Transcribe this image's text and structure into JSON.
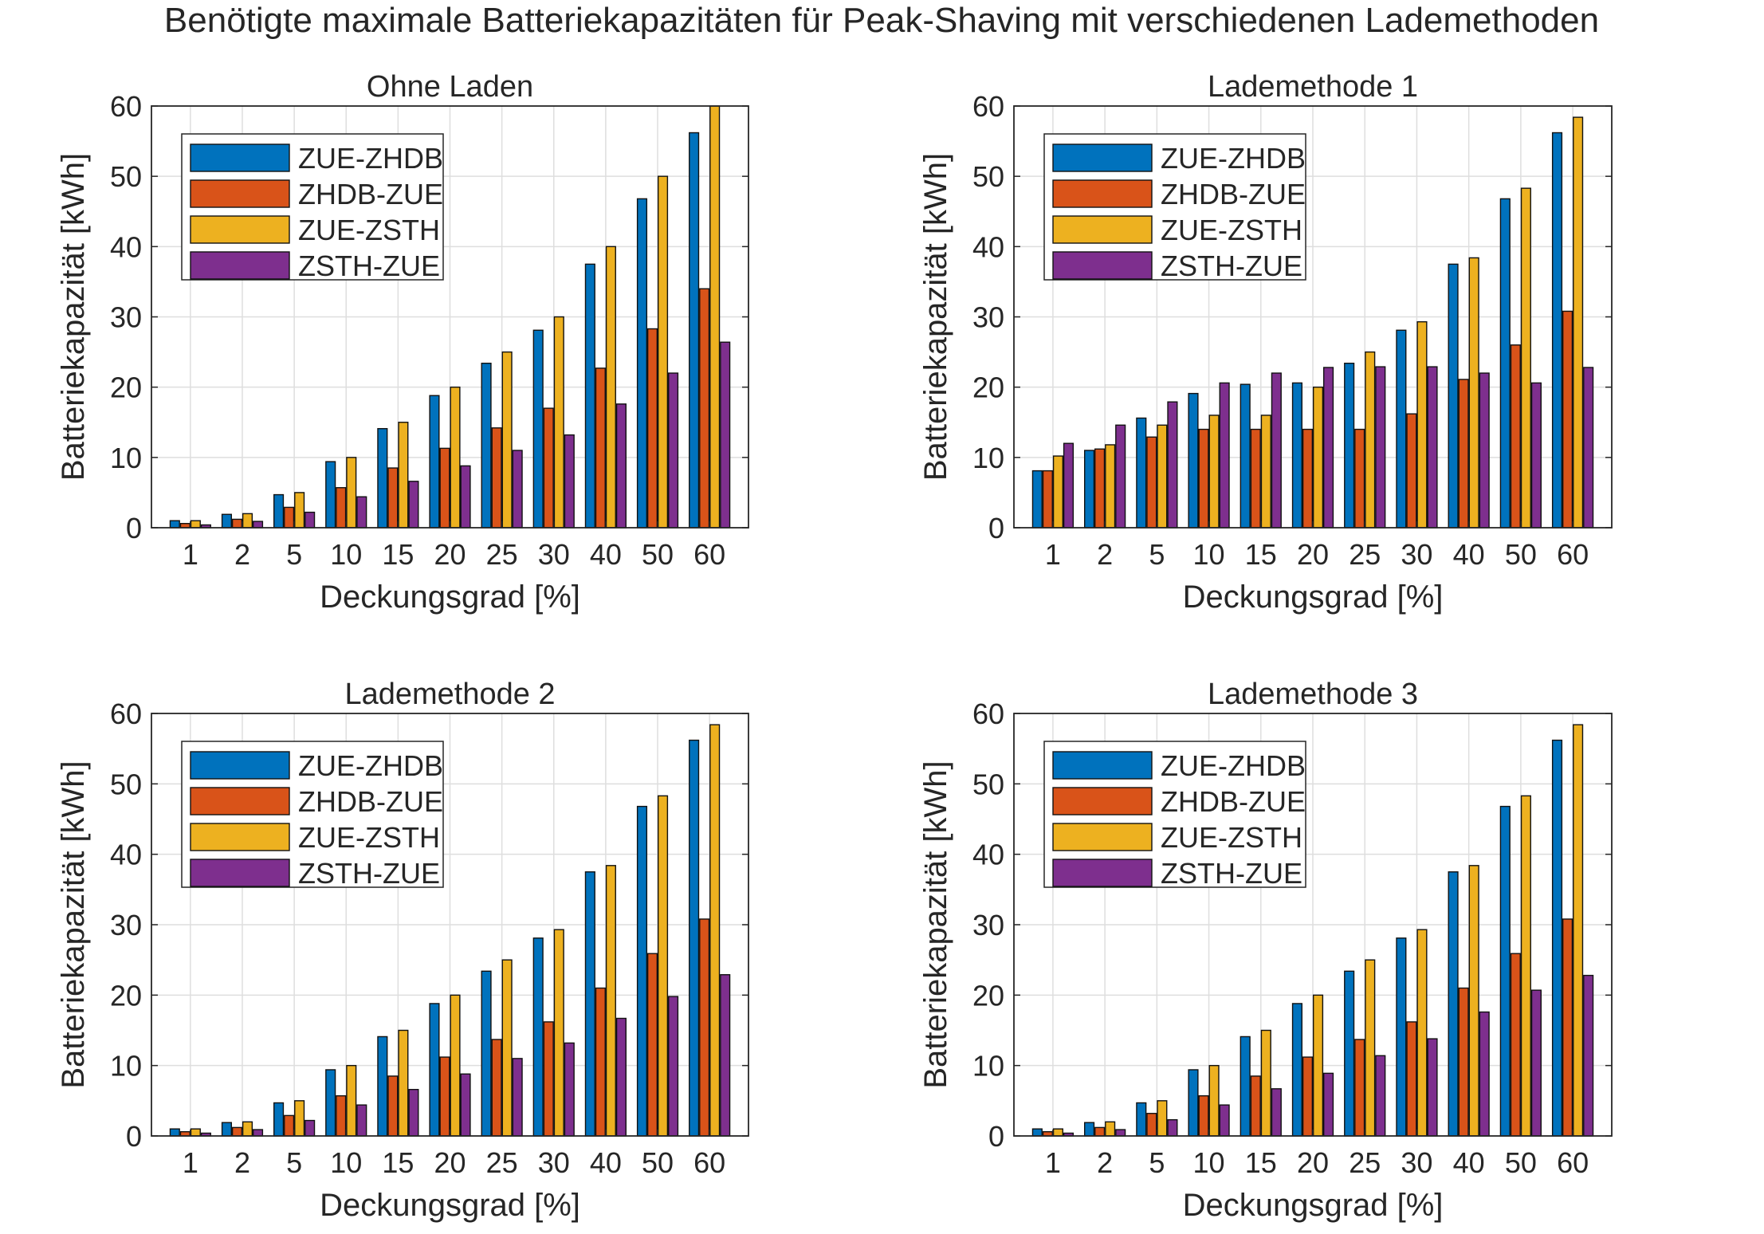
{
  "figure_title": "Benötigte maximale Batteriekapazitäten für Peak-Shaving mit verschiedenen Lademethoden",
  "colors": {
    "ZUE-ZHDB": "#0072BD",
    "ZHDB-ZUE": "#D95319",
    "ZUE-ZSTH": "#EDB120",
    "ZSTH-ZUE": "#7E2F8E",
    "grid": "#dedede",
    "axis": "#262626"
  },
  "chart_data": [
    {
      "type": "bar",
      "title": "Ohne Laden",
      "xlabel": "Deckungsgrad [%]",
      "ylabel": "Batteriekapazität [kWh]",
      "ylim": [
        0,
        60
      ],
      "yticks": [
        "0",
        "10",
        "20",
        "30",
        "40",
        "50",
        "60"
      ],
      "categories": [
        "1",
        "2",
        "5",
        "10",
        "15",
        "20",
        "25",
        "30",
        "40",
        "50",
        "60"
      ],
      "grid": true,
      "legend_position": "top-left",
      "series": [
        {
          "name": "ZUE-ZHDB",
          "values": [
            1.0,
            1.9,
            4.7,
            9.4,
            14.1,
            18.8,
            23.4,
            28.1,
            37.5,
            46.8,
            56.2
          ]
        },
        {
          "name": "ZHDB-ZUE",
          "values": [
            0.6,
            1.2,
            2.9,
            5.7,
            8.5,
            11.3,
            14.2,
            17.0,
            22.7,
            28.3,
            34.0
          ]
        },
        {
          "name": "ZUE-ZSTH",
          "values": [
            1.0,
            2.0,
            5.0,
            10.0,
            15.0,
            20.0,
            25.0,
            30.0,
            40.0,
            50.0,
            60.0
          ]
        },
        {
          "name": "ZSTH-ZUE",
          "values": [
            0.4,
            0.9,
            2.2,
            4.4,
            6.6,
            8.8,
            11.0,
            13.2,
            17.6,
            22.0,
            26.4
          ]
        }
      ]
    },
    {
      "type": "bar",
      "title": "Lademethode 1",
      "xlabel": "Deckungsgrad [%]",
      "ylabel": "Batteriekapazität [kWh]",
      "ylim": [
        0,
        60
      ],
      "yticks": [
        "0",
        "10",
        "20",
        "30",
        "40",
        "50",
        "60"
      ],
      "categories": [
        "1",
        "2",
        "5",
        "10",
        "15",
        "20",
        "25",
        "30",
        "40",
        "50",
        "60"
      ],
      "grid": true,
      "legend_position": "top-left",
      "series": [
        {
          "name": "ZUE-ZHDB",
          "values": [
            8.1,
            11.0,
            15.6,
            19.1,
            20.4,
            20.6,
            23.4,
            28.1,
            37.5,
            46.8,
            56.2
          ]
        },
        {
          "name": "ZHDB-ZUE",
          "values": [
            8.1,
            11.2,
            12.9,
            14.0,
            14.0,
            14.0,
            14.0,
            16.2,
            21.1,
            26.0,
            30.8
          ]
        },
        {
          "name": "ZUE-ZSTH",
          "values": [
            10.2,
            11.8,
            14.6,
            16.0,
            16.0,
            20.0,
            25.0,
            29.3,
            38.4,
            48.3,
            58.4
          ]
        },
        {
          "name": "ZSTH-ZUE",
          "values": [
            12.0,
            14.6,
            17.9,
            20.6,
            22.0,
            22.8,
            22.9,
            22.9,
            22.0,
            20.6,
            22.8
          ]
        }
      ]
    },
    {
      "type": "bar",
      "title": "Lademethode 2",
      "xlabel": "Deckungsgrad [%]",
      "ylabel": "Batteriekapazität [kWh]",
      "ylim": [
        0,
        60
      ],
      "yticks": [
        "0",
        "10",
        "20",
        "30",
        "40",
        "50",
        "60"
      ],
      "categories": [
        "1",
        "2",
        "5",
        "10",
        "15",
        "20",
        "25",
        "30",
        "40",
        "50",
        "60"
      ],
      "grid": true,
      "legend_position": "top-left",
      "series": [
        {
          "name": "ZUE-ZHDB",
          "values": [
            1.0,
            1.9,
            4.7,
            9.4,
            14.1,
            18.8,
            23.4,
            28.1,
            37.5,
            46.8,
            56.2
          ]
        },
        {
          "name": "ZHDB-ZUE",
          "values": [
            0.6,
            1.2,
            2.9,
            5.7,
            8.5,
            11.2,
            13.7,
            16.2,
            21.0,
            25.9,
            30.8
          ]
        },
        {
          "name": "ZUE-ZSTH",
          "values": [
            1.0,
            2.0,
            5.0,
            10.0,
            15.0,
            20.0,
            25.0,
            29.3,
            38.4,
            48.3,
            58.4
          ]
        },
        {
          "name": "ZSTH-ZUE",
          "values": [
            0.4,
            0.9,
            2.2,
            4.4,
            6.6,
            8.8,
            11.0,
            13.2,
            16.7,
            19.8,
            22.9
          ]
        }
      ]
    },
    {
      "type": "bar",
      "title": "Lademethode 3",
      "xlabel": "Deckungsgrad [%]",
      "ylabel": "Batteriekapazität [kWh]",
      "ylim": [
        0,
        60
      ],
      "yticks": [
        "0",
        "10",
        "20",
        "30",
        "40",
        "50",
        "60"
      ],
      "categories": [
        "1",
        "2",
        "5",
        "10",
        "15",
        "20",
        "25",
        "30",
        "40",
        "50",
        "60"
      ],
      "grid": true,
      "legend_position": "top-left",
      "series": [
        {
          "name": "ZUE-ZHDB",
          "values": [
            1.0,
            1.9,
            4.7,
            9.4,
            14.1,
            18.8,
            23.4,
            28.1,
            37.5,
            46.8,
            56.2
          ]
        },
        {
          "name": "ZHDB-ZUE",
          "values": [
            0.6,
            1.2,
            3.2,
            5.7,
            8.5,
            11.2,
            13.7,
            16.2,
            21.0,
            25.9,
            30.8
          ]
        },
        {
          "name": "ZUE-ZSTH",
          "values": [
            1.0,
            2.0,
            5.0,
            10.0,
            15.0,
            20.0,
            25.0,
            29.3,
            38.4,
            48.3,
            58.4
          ]
        },
        {
          "name": "ZSTH-ZUE",
          "values": [
            0.4,
            0.9,
            2.3,
            4.4,
            6.7,
            8.9,
            11.4,
            13.8,
            17.6,
            20.7,
            22.8
          ]
        }
      ]
    }
  ]
}
